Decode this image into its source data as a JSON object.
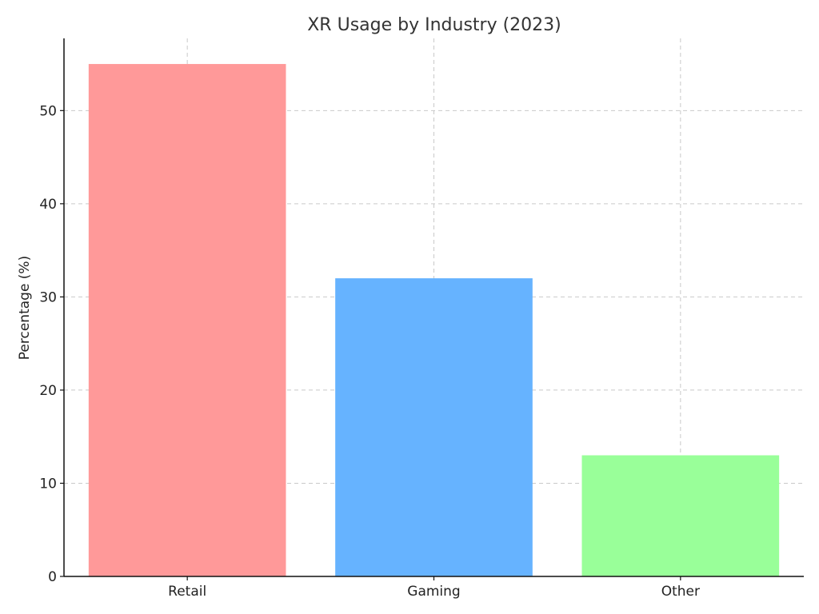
{
  "chart_data": {
    "type": "bar",
    "title": "XR Usage by Industry (2023)",
    "xlabel": "",
    "ylabel": "Percentage (%)",
    "categories": [
      "Retail",
      "Gaming",
      "Other"
    ],
    "values": [
      55,
      32,
      13
    ],
    "colors": [
      "#ff9999",
      "#66b3ff",
      "#99ff99"
    ],
    "ylim": [
      0,
      57.75
    ],
    "yticks": [
      0,
      10,
      20,
      30,
      40,
      50
    ],
    "grid": true
  }
}
